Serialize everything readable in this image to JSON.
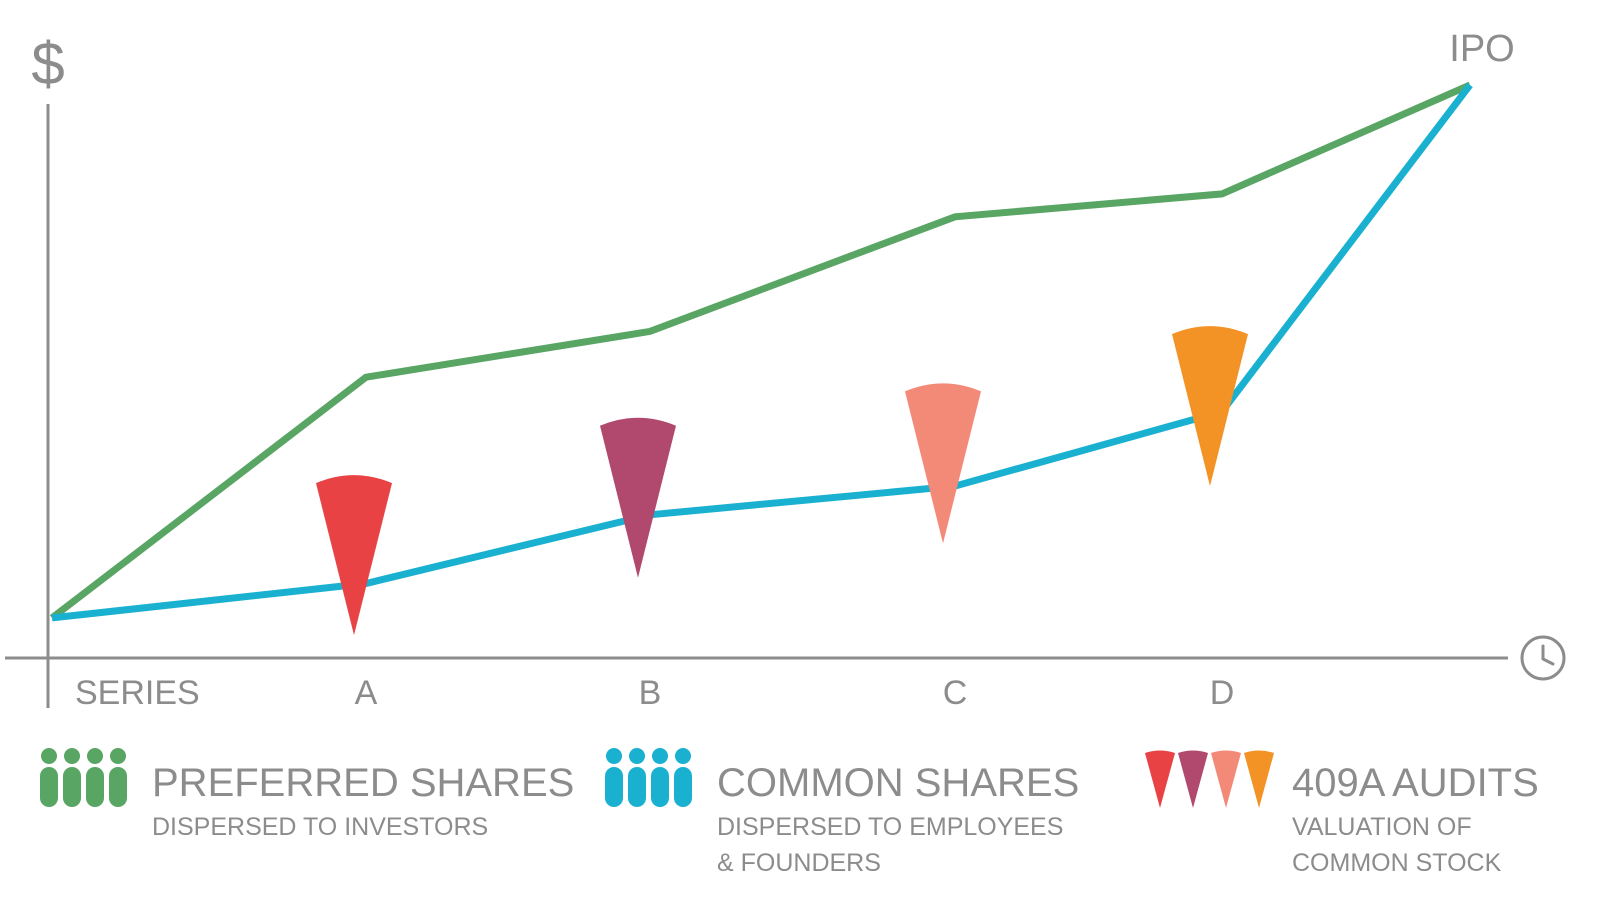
{
  "chart_data": {
    "type": "line",
    "title": "",
    "ylabel": "$",
    "xlabel": "SERIES",
    "x_end_label": "IPO",
    "x_axis_icon": "clock-icon",
    "categories": [
      "",
      "A",
      "B",
      "C",
      "D",
      "IPO"
    ],
    "tick_labels": [
      "A",
      "B",
      "C",
      "D"
    ],
    "ylim": [
      0,
      100
    ],
    "grid": false,
    "legend_position": "bottom",
    "series": [
      {
        "key": "preferred",
        "color": "#58a564",
        "values": [
          7,
          49,
          57,
          77,
          81,
          100
        ]
      },
      {
        "key": "common",
        "color": "#1ab1d1",
        "values": [
          7,
          13,
          25,
          30,
          43,
          100
        ]
      }
    ],
    "audits": [
      {
        "category": "B",
        "x_index": 1,
        "value": 4,
        "color": "#e94245"
      },
      {
        "category": "B",
        "x_index": 2,
        "value": 14,
        "color": "#b1486e"
      },
      {
        "category": "C",
        "x_index": 3,
        "value": 20,
        "color": "#f38a78"
      },
      {
        "category": "D",
        "x_index": 4,
        "value": 30,
        "color": "#f39325"
      }
    ]
  },
  "legend": [
    {
      "title": "PREFERRED SHARES",
      "desc": [
        "DISPERSED TO INVESTORS"
      ],
      "icon": "people-icon",
      "color": "#58a564"
    },
    {
      "title": "COMMON SHARES",
      "desc": [
        "DISPERSED TO EMPLOYEES",
        "& FOUNDERS"
      ],
      "icon": "people-icon",
      "color": "#1ab1d1"
    },
    {
      "title": "409A AUDITS",
      "desc": [
        "VALUATION OF",
        "COMMON STOCK"
      ],
      "icon": "wedge-icon",
      "colors": [
        "#e94245",
        "#b1486e",
        "#f38a78",
        "#f39325"
      ]
    }
  ],
  "colors": {
    "axis": "#8c8c8c"
  }
}
